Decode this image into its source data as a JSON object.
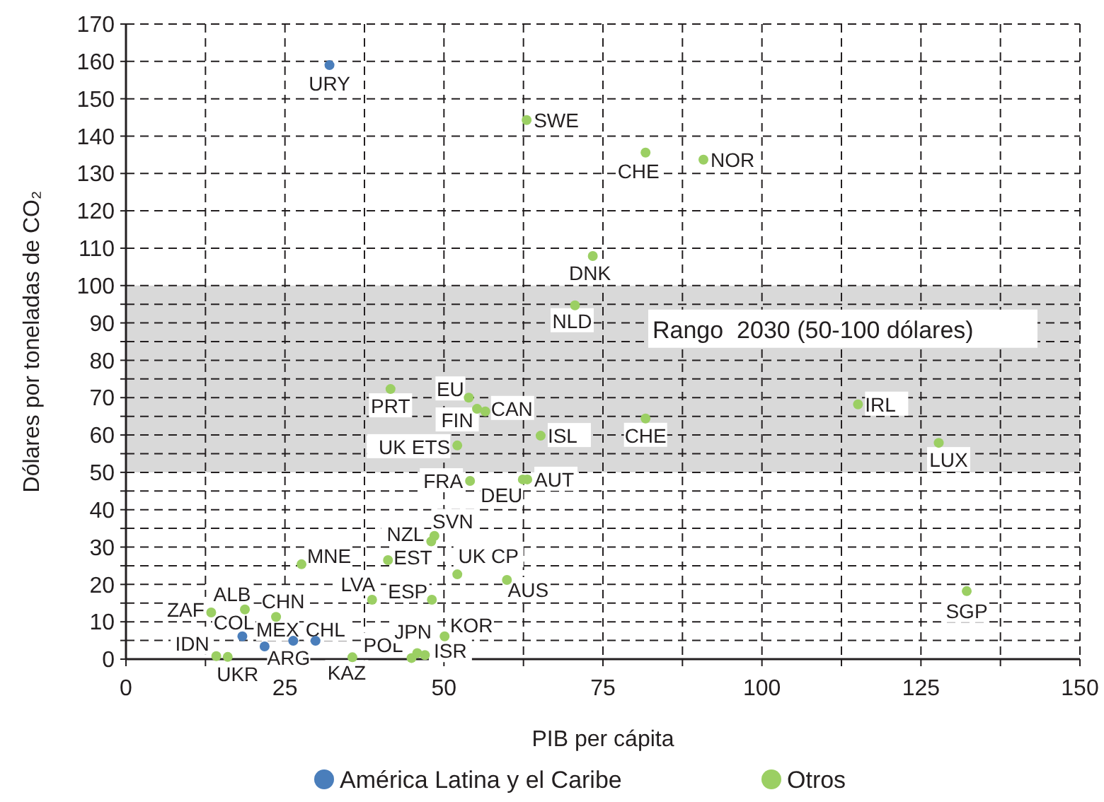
{
  "chart_data": {
    "type": "scatter",
    "xlabel": "PIB per cápita",
    "ylabel": "Dólares por toneladas de CO₂",
    "xlim": [
      0,
      150
    ],
    "ylim": [
      0,
      170
    ],
    "xticks": [
      0,
      {
        "value": 12.5,
        "label": null
      },
      25,
      {
        "value": 37.5,
        "label": null
      },
      50,
      {
        "value": 62.5,
        "label": null
      },
      75,
      {
        "value": 87.5,
        "label": null
      },
      100,
      {
        "value": 112.5,
        "label": null
      },
      125,
      {
        "value": 137.5,
        "label": null
      },
      150
    ],
    "yticks": [
      0,
      {
        "value": 5,
        "label": null
      },
      10,
      {
        "value": 15,
        "label": null
      },
      20,
      {
        "value": 25,
        "label": null
      },
      30,
      {
        "value": 35,
        "label": null
      },
      40,
      {
        "value": 45,
        "label": null
      },
      50,
      {
        "value": 55,
        "label": null
      },
      60,
      {
        "value": 65,
        "label": null
      },
      70,
      {
        "value": 75,
        "label": null
      },
      80,
      {
        "value": 85,
        "label": null
      },
      90,
      {
        "value": 95,
        "label": null
      },
      100,
      110,
      120,
      130,
      140,
      150,
      160,
      170
    ],
    "grid": true,
    "legend": "bottom",
    "marker": "circle",
    "bands": [
      {
        "axis": "y",
        "from": 50,
        "to": 100,
        "label": "Rango  2030 (50-100 dólares)",
        "color": "#d9d9d9"
      }
    ],
    "series": [
      {
        "name": "América Latina y el Caribe",
        "color": "#4a7ebb",
        "x": [
          32,
          18.3,
          26.3,
          21.8,
          29.8
        ],
        "values": [
          159,
          6.1,
          4.9,
          3.4,
          4.9
        ],
        "value_labels": [
          "URY",
          "COL",
          "MEX",
          "ARG",
          "CHL"
        ]
      },
      {
        "name": "Otros",
        "color": "#9bcf63",
        "x": [
          63,
          81.7,
          90.8,
          73.4,
          70.6,
          115.1,
          127.8,
          132.2,
          81.7,
          65.2,
          63.1,
          62.4,
          41.6,
          53.9,
          55.2,
          56.5,
          52.1,
          54.1,
          48.5,
          48,
          41.2,
          27.6,
          52.1,
          59.9,
          38.7,
          48.1,
          13.4,
          18.7,
          23.6,
          14.2,
          16,
          35.6,
          44.9,
          45.8,
          47,
          50.1
        ],
        "values": [
          144.3,
          135.6,
          133.7,
          107.9,
          94.7,
          68.2,
          57.9,
          18.2,
          64.4,
          59.8,
          48.1,
          48.1,
          72.3,
          70,
          67,
          66.3,
          57.2,
          47.7,
          33,
          31.5,
          26.5,
          25.4,
          22.7,
          21.2,
          15.9,
          15.9,
          12.5,
          13.3,
          11.3,
          0.8,
          0.6,
          0.5,
          0.3,
          1.6,
          1.1,
          6.1
        ],
        "value_labels": [
          "SWE",
          "CHE",
          "NOR",
          "DNK",
          "NLD",
          "IRL",
          "LUX",
          "SGP",
          "CHE",
          "ISL",
          "AUT",
          "DEU",
          "PRT",
          "EU",
          "FIN",
          "CAN",
          "UK ETS",
          "FRA",
          "SVN",
          "NZL",
          "EST",
          "MNE",
          "UK CP",
          "AUS",
          "LVA",
          "ESP",
          "ZAF",
          "ALB",
          "CHN",
          "IDN",
          "UKR",
          "KAZ",
          "POL",
          "JPN",
          "ISR",
          "KOR"
        ]
      }
    ]
  }
}
